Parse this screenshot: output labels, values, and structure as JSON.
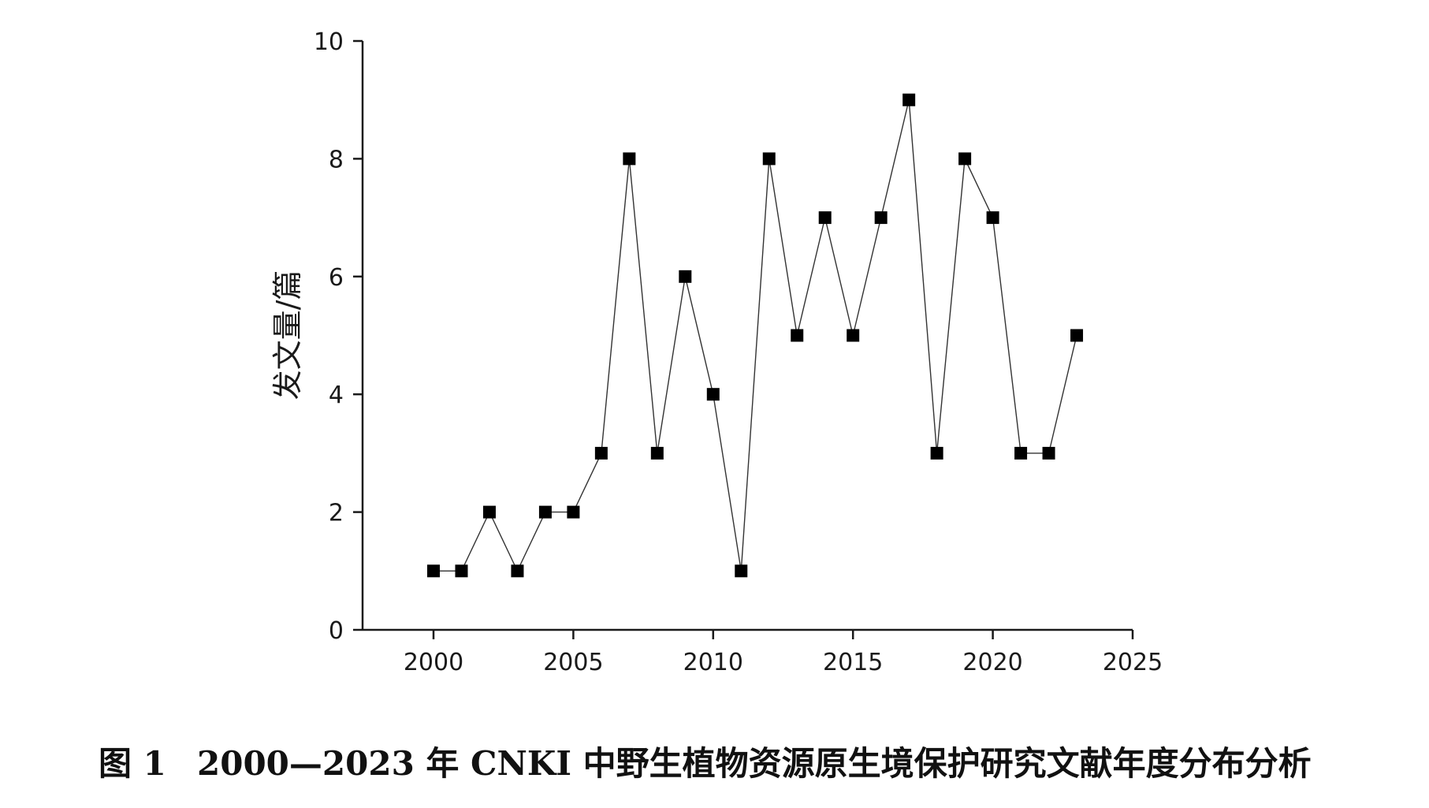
{
  "caption": {
    "figure_number": "图 1",
    "text": "2000—2023 年 CNKI 中野生植物资源原生境保护研究文献年度分布分析"
  },
  "chart_data": {
    "type": "line",
    "marker": "square",
    "title": "",
    "xlabel": "",
    "ylabel": "发文量/篇",
    "xlim": [
      1997.5,
      2025
    ],
    "ylim": [
      0,
      10
    ],
    "xticks": [
      2000,
      2005,
      2010,
      2015,
      2020,
      2025
    ],
    "yticks": [
      0,
      2,
      4,
      6,
      8,
      10
    ],
    "grid": false,
    "legend": "none",
    "line_color": "#333333",
    "marker_color": "#000000",
    "x": [
      2000,
      2001,
      2002,
      2003,
      2004,
      2005,
      2006,
      2007,
      2008,
      2009,
      2010,
      2011,
      2012,
      2013,
      2014,
      2015,
      2016,
      2017,
      2018,
      2019,
      2020,
      2021,
      2022,
      2023
    ],
    "series": [
      {
        "values": [
          1,
          1,
          2,
          1,
          2,
          2,
          3,
          8,
          3,
          6,
          4,
          1,
          8,
          5,
          7,
          5,
          7,
          9,
          3,
          8,
          7,
          3,
          3,
          5
        ]
      }
    ]
  }
}
